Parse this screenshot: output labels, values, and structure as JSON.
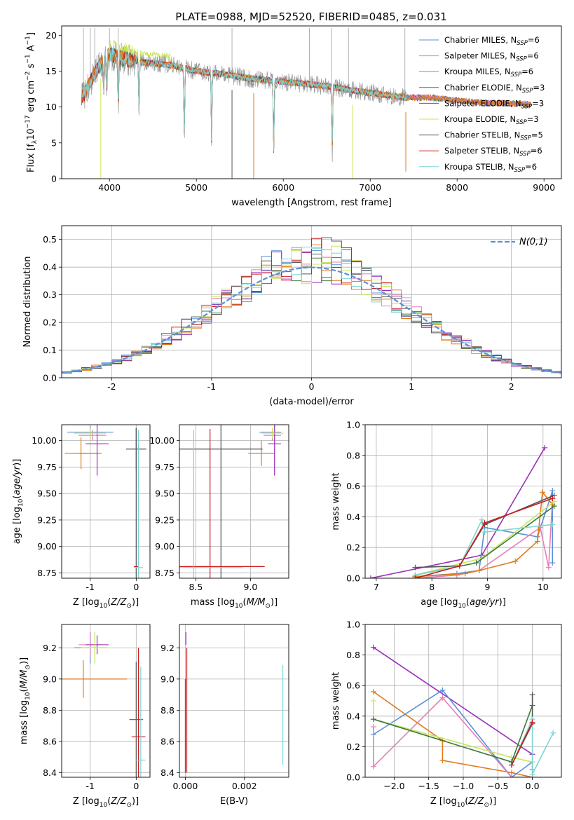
{
  "figure_title": "PLATE=0988, MJD=52520, FIBERID=0485, z=0.031",
  "colors": {
    "chabrier_miles": "#5b8fd9",
    "salpeter_miles": "#e67fb5",
    "kroupa_miles": "#e07b1a",
    "chabrier_elodie": "#3c7a3c",
    "salpeter_elodie": "#9b30b8",
    "kroupa_elodie": "#c8e65a",
    "chabrier_stelib": "#555555",
    "salpeter_stelib": "#c81e1e",
    "kroupa_stelib": "#7dd4d4",
    "data": "#909090",
    "gaussian": "#5b8fd9"
  },
  "legend": [
    {
      "key": "chabrier_miles",
      "label": "Chabrier MILES, N",
      "sub": "SSP",
      "suffix": "=6"
    },
    {
      "key": "salpeter_miles",
      "label": "Salpeter MILES, N",
      "sub": "SSP",
      "suffix": "=6"
    },
    {
      "key": "kroupa_miles",
      "label": "Kroupa MILES, N",
      "sub": "SSP",
      "suffix": "=6"
    },
    {
      "key": "chabrier_elodie",
      "label": "Chabrier ELODIE, N",
      "sub": "SSP",
      "suffix": "=3"
    },
    {
      "key": "salpeter_elodie",
      "label": "Salpeter ELODIE, N",
      "sub": "SSP",
      "suffix": "=3"
    },
    {
      "key": "kroupa_elodie",
      "label": "Kroupa ELODIE, N",
      "sub": "SSP",
      "suffix": "=3"
    },
    {
      "key": "chabrier_stelib",
      "label": "Chabrier STELIB, N",
      "sub": "SSP",
      "suffix": "=5"
    },
    {
      "key": "salpeter_stelib",
      "label": "Salpeter STELIB, N",
      "sub": "SSP",
      "suffix": "=6"
    },
    {
      "key": "kroupa_stelib",
      "label": "Kroupa STELIB, N",
      "sub": "SSP",
      "suffix": "=6"
    }
  ],
  "chart_data": [
    {
      "id": "spectrum",
      "type": "line",
      "title": "PLATE=0988, MJD=52520, FIBERID=0485, z=0.031",
      "xlabel": "wavelength [Angstrom, rest frame]",
      "ylabel": "Flux [f_λ 10^-17 erg cm^-2 s^-1 A^-1]",
      "xlim": [
        3450,
        9200
      ],
      "ylim": [
        0,
        21.3
      ],
      "xticks": [
        4000,
        5000,
        6000,
        7000,
        8000,
        9000
      ],
      "yticks": [
        0,
        5,
        10,
        15,
        20
      ],
      "data_range": [
        3680,
        7420
      ],
      "model_range": [
        3680,
        8850
      ],
      "continuum": [
        [
          3680,
          11.2
        ],
        [
          3740,
          12.5
        ],
        [
          3800,
          14.0
        ],
        [
          3900,
          16.0
        ],
        [
          4000,
          17.4
        ],
        [
          4100,
          16.9
        ],
        [
          4200,
          16.6
        ],
        [
          4400,
          16.2
        ],
        [
          4600,
          16.0
        ],
        [
          4800,
          15.6
        ],
        [
          5000,
          15.0
        ],
        [
          5300,
          14.6
        ],
        [
          5600,
          14.0
        ],
        [
          5900,
          13.6
        ],
        [
          6200,
          13.3
        ],
        [
          6500,
          12.9
        ],
        [
          6800,
          12.3
        ],
        [
          7100,
          11.8
        ],
        [
          7400,
          11.3
        ],
        [
          7700,
          11.3
        ],
        [
          8000,
          10.9
        ],
        [
          8300,
          10.6
        ],
        [
          8600,
          10.5
        ],
        [
          8850,
          10.3
        ]
      ],
      "absorption_lines": [
        [
          3934,
          5.0
        ],
        [
          3968,
          6.2
        ],
        [
          4102,
          8.5
        ],
        [
          4340,
          9.0
        ],
        [
          4861,
          12.0
        ],
        [
          5175,
          11.8
        ],
        [
          5890,
          12.0
        ],
        [
          6563,
          11.5
        ]
      ],
      "spikes": [
        [
          3700,
          21.0
        ],
        [
          3780,
          21.0
        ],
        [
          3830,
          21.0
        ],
        [
          4000,
          21.0
        ],
        [
          4100,
          21.0
        ],
        [
          5410,
          21.0
        ],
        [
          6300,
          21.0
        ],
        [
          6550,
          21.0
        ],
        [
          6750,
          21.0
        ],
        [
          7400,
          21.0
        ]
      ],
      "dips": [
        [
          3900,
          0
        ],
        [
          5410,
          0
        ],
        [
          5660,
          0
        ],
        [
          6800,
          0
        ],
        [
          7410,
          1.0
        ]
      ]
    },
    {
      "id": "residuals",
      "type": "line",
      "xlabel": "(data-model)/error",
      "ylabel": "Normed distribution",
      "xlim": [
        -2.5,
        2.5
      ],
      "ylim": [
        0,
        0.55
      ],
      "xticks": [
        -2,
        -1,
        0,
        1,
        2
      ],
      "yticks": [
        0.0,
        0.1,
        0.2,
        0.3,
        0.4,
        0.5
      ],
      "gaussian_label": "N(0,1)",
      "bin_width": 0.1,
      "base_amplitude": 0.4
    },
    {
      "id": "age_Z",
      "type": "scatter",
      "xlabel": "Z [log10(Z/Z⊙)]",
      "ylabel": "age [log10(age/yr)]",
      "xlim": [
        -1.62,
        0.3
      ],
      "ylim": [
        8.7,
        10.15
      ],
      "xticks": [
        -1,
        0
      ],
      "yticks": [
        8.75,
        9.0,
        9.25,
        9.5,
        9.75,
        10.0
      ],
      "points": [
        {
          "s": "chabrier_miles",
          "x": -1.0,
          "y": 10.08,
          "ex": 0.5,
          "ey": 0.06
        },
        {
          "s": "salpeter_miles",
          "x": -0.95,
          "y": 10.05,
          "ex": 0.3,
          "ey": 0.05
        },
        {
          "s": "kroupa_miles",
          "x": -1.2,
          "y": 9.88,
          "ex": 0.35,
          "ey": 0.15
        },
        {
          "s": "kroupa_miles",
          "x": -1.0,
          "y": 9.88,
          "ex": 0.25,
          "ey": 0.0
        },
        {
          "s": "salpeter_elodie",
          "x": -0.85,
          "y": 9.97,
          "ex": 0.25,
          "ey": 0.3
        },
        {
          "s": "kroupa_elodie",
          "x": -1.0,
          "y": 10.07,
          "ex": 0.35,
          "ey": 0.05
        },
        {
          "s": "chabrier_stelib",
          "x": 0.0,
          "y": 9.92,
          "ex": 0.22,
          "ey": 0.2
        },
        {
          "s": "chabrier_stelib",
          "x": 0.0,
          "y": 8.82,
          "ex": 0.0,
          "ey": 1.3
        },
        {
          "s": "salpeter_stelib",
          "x": 0.0,
          "y": 8.81,
          "ex": 0.05,
          "ey": 0.0
        },
        {
          "s": "kroupa_stelib",
          "x": 0.05,
          "y": 8.8,
          "ex": 0.1,
          "ey": 1.3
        }
      ]
    },
    {
      "id": "age_mass",
      "type": "scatter",
      "xlabel": "mass [log10(M/M⊙)]",
      "ylabel": "",
      "xlim": [
        8.35,
        9.35
      ],
      "ylim": [
        8.7,
        10.15
      ],
      "xticks": [
        8.5,
        9.0
      ],
      "yticks": [
        8.75,
        9.0,
        9.25,
        9.5,
        9.75,
        10.0
      ],
      "points": [
        {
          "s": "chabrier_miles",
          "x": 9.18,
          "y": 10.08,
          "ex": 0.1,
          "ey": 0.0
        },
        {
          "s": "salpeter_miles",
          "x": 9.2,
          "y": 10.05,
          "ex": 0.08,
          "ey": 0.05
        },
        {
          "s": "kroupa_miles",
          "x": 9.1,
          "y": 9.88,
          "ex": 0.12,
          "ey": 0.12
        },
        {
          "s": "salpeter_elodie",
          "x": 9.22,
          "y": 9.97,
          "ex": 0.06,
          "ey": 0.3
        },
        {
          "s": "kroupa_elodie",
          "x": 9.2,
          "y": 10.07,
          "ex": 0.1,
          "ey": 0.05
        },
        {
          "s": "chabrier_stelib",
          "x": 8.73,
          "y": 9.92,
          "ex": 0.38,
          "ey": 1.3
        },
        {
          "s": "salpeter_stelib",
          "x": 8.63,
          "y": 8.81,
          "ex": 0.5,
          "ey": 1.3
        },
        {
          "s": "kroupa_stelib",
          "x": 8.48,
          "y": 8.8,
          "ex": 0.45,
          "ey": 1.3
        }
      ]
    },
    {
      "id": "mw_age",
      "type": "line",
      "xlabel": "age [log10(age/yr)]",
      "ylabel": "mass weight",
      "xlim": [
        6.8,
        10.33
      ],
      "ylim": [
        0,
        1.0
      ],
      "xticks": [
        7,
        8,
        9,
        10
      ],
      "yticks": [
        0.0,
        0.2,
        0.4,
        0.6,
        0.8,
        1.0
      ],
      "series": [
        {
          "s": "salpeter_elodie",
          "x": [
            6.9,
            8.9,
            10.03
          ],
          "y": [
            0.0,
            0.15,
            0.85
          ]
        },
        {
          "s": "chabrier_miles",
          "x": [
            7.7,
            8.45,
            8.85,
            8.95,
            9.9,
            10.17,
            10.17
          ],
          "y": [
            0.01,
            0.03,
            0.05,
            0.33,
            0.27,
            0.57,
            0.1
          ]
        },
        {
          "s": "salpeter_miles",
          "x": [
            7.7,
            8.45,
            8.85,
            9.95,
            10.1,
            10.17
          ],
          "y": [
            0.0,
            0.02,
            0.05,
            0.33,
            0.07,
            0.52
          ]
        },
        {
          "s": "kroupa_miles",
          "x": [
            7.7,
            8.6,
            8.85,
            9.5,
            9.9,
            9.99,
            10.17
          ],
          "y": [
            0.01,
            0.03,
            0.05,
            0.11,
            0.24,
            0.56,
            0.48
          ]
        },
        {
          "s": "kroupa_elodie",
          "x": [
            7.7,
            8.9,
            10.2
          ],
          "y": [
            0.02,
            0.13,
            0.5
          ]
        },
        {
          "s": "chabrier_elodie",
          "x": [
            7.7,
            8.8,
            10.2
          ],
          "y": [
            0.02,
            0.1,
            0.47
          ]
        },
        {
          "s": "chabrier_stelib",
          "x": [
            7.7,
            8.5,
            8.95,
            10.2
          ],
          "y": [
            0.07,
            0.08,
            0.35,
            0.54
          ]
        },
        {
          "s": "kroupa_stelib",
          "x": [
            7.7,
            8.5,
            8.9,
            8.95,
            10.17
          ],
          "y": [
            0.02,
            0.08,
            0.38,
            0.3,
            0.35
          ]
        },
        {
          "s": "salpeter_stelib",
          "x": [
            7.7,
            8.5,
            8.95,
            10.17
          ],
          "y": [
            0.0,
            0.08,
            0.36,
            0.52
          ]
        }
      ]
    },
    {
      "id": "mass_Z",
      "type": "scatter",
      "xlabel": "Z [log10(Z/Z⊙)]",
      "ylabel": "mass [log10(M/M⊙)]",
      "xlim": [
        -1.62,
        0.3
      ],
      "ylim": [
        8.37,
        9.35
      ],
      "xticks": [
        -1,
        0
      ],
      "yticks": [
        8.4,
        8.6,
        8.8,
        9.0,
        9.2
      ],
      "points": [
        {
          "s": "chabrier_miles",
          "x": -1.0,
          "y": 9.2,
          "ex": 0.35,
          "ey": 0.1
        },
        {
          "s": "salpeter_miles",
          "x": -1.0,
          "y": 9.22,
          "ex": 0.25,
          "ey": 0.08
        },
        {
          "s": "kroupa_miles",
          "x": -1.15,
          "y": 9.0,
          "ex": 0.95,
          "ey": 0.12
        },
        {
          "s": "salpeter_elodie",
          "x": -0.85,
          "y": 9.22,
          "ex": 0.25,
          "ey": 0.06
        },
        {
          "s": "kroupa_elodie",
          "x": -0.9,
          "y": 9.2,
          "ex": 0.3,
          "ey": 0.1
        },
        {
          "s": "chabrier_stelib",
          "x": 0.0,
          "y": 8.74,
          "ex": 0.15,
          "ey": 0.37
        },
        {
          "s": "salpeter_stelib",
          "x": 0.05,
          "y": 8.63,
          "ex": 0.15,
          "ey": 0.57
        },
        {
          "s": "kroupa_stelib",
          "x": 0.1,
          "y": 8.48,
          "ex": 0.1,
          "ey": 0.6
        }
      ]
    },
    {
      "id": "mass_ebv",
      "type": "scatter",
      "xlabel": "E(B-V)",
      "ylabel": "",
      "xlim": [
        -0.0002,
        0.0035
      ],
      "ylim": [
        8.37,
        9.35
      ],
      "xticks": [
        0.0,
        0.002
      ],
      "xtick_labels": [
        "0.000",
        "0.002"
      ],
      "yticks": [
        8.4,
        8.6,
        8.8,
        9.0,
        9.2
      ],
      "points": [
        {
          "s": "salpeter_elodie",
          "x": 2e-05,
          "y": 9.26,
          "ex": 0.0,
          "ey": 0.04
        },
        {
          "s": "salpeter_stelib",
          "x": 5e-05,
          "y": 8.8,
          "ex": 0.0,
          "ey": 0.4
        },
        {
          "s": "chabrier_stelib",
          "x": 0.0,
          "y": 8.7,
          "ex": 0.0,
          "ey": 0.3
        },
        {
          "s": "kroupa_stelib",
          "x": 0.0033,
          "y": 8.77,
          "ex": 0.0,
          "ey": 0.32
        }
      ]
    },
    {
      "id": "mw_Z",
      "type": "line",
      "xlabel": "Z [log10(Z/Z⊙)]",
      "ylabel": "mass weight",
      "xlim": [
        -2.42,
        0.42
      ],
      "ylim": [
        0,
        1.0
      ],
      "xticks": [
        -2.0,
        -1.5,
        -1.0,
        -0.5,
        0.0
      ],
      "yticks": [
        0.0,
        0.2,
        0.4,
        0.6,
        0.8,
        1.0
      ],
      "series": [
        {
          "s": "salpeter_elodie",
          "x": [
            -2.3,
            0.0
          ],
          "y": [
            0.85,
            0.15
          ]
        },
        {
          "s": "kroupa_miles",
          "x": [
            -2.3,
            -1.3,
            -1.3,
            -0.3,
            0.0
          ],
          "y": [
            0.56,
            0.24,
            0.11,
            0.03,
            0.0
          ]
        },
        {
          "s": "chabrier_miles",
          "x": [
            -2.3,
            -1.3,
            -0.3,
            0.0,
            0.0
          ],
          "y": [
            0.28,
            0.57,
            0.0,
            0.1,
            0.05
          ]
        },
        {
          "s": "salpeter_miles",
          "x": [
            -2.3,
            -2.3,
            -1.3,
            -0.3,
            0.0
          ],
          "y": [
            0.33,
            0.07,
            0.52,
            0.0,
            0.0
          ]
        },
        {
          "s": "kroupa_elodie",
          "x": [
            -2.3,
            -2.3,
            -0.3,
            0.0
          ],
          "y": [
            0.5,
            0.38,
            0.13,
            0.1
          ]
        },
        {
          "s": "chabrier_elodie",
          "x": [
            -2.3,
            -0.3,
            0.0
          ],
          "y": [
            0.38,
            0.1,
            0.47
          ]
        },
        {
          "s": "chabrier_stelib",
          "x": [
            -0.3,
            0.0,
            0.0
          ],
          "y": [
            0.08,
            0.35,
            0.54
          ]
        },
        {
          "s": "kroupa_stelib",
          "x": [
            -0.3,
            0.0,
            0.0,
            0.3
          ],
          "y": [
            0.08,
            0.38,
            0.02,
            0.29
          ]
        },
        {
          "s": "salpeter_stelib",
          "x": [
            -0.3,
            0.0
          ],
          "y": [
            0.08,
            0.36
          ]
        }
      ]
    }
  ]
}
